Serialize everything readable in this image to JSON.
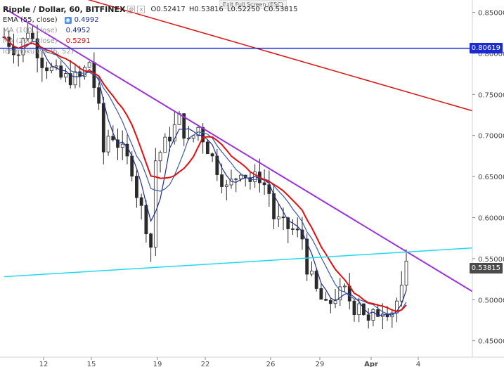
{
  "header": {
    "symbol": "Ripple / Dollar, 60, BITFINEX",
    "ohlc": {
      "o": "O0.52417",
      "h": "H0.53816",
      "l": "L0.52250",
      "c": "C0.53815"
    },
    "exit_fullscreen": "Exit Full Screen (ESC)"
  },
  "indicators": [
    {
      "label": "EMA (55, close)",
      "value": "0.4992",
      "color": "#1f2f8f"
    },
    {
      "label": "MA (100, close)",
      "value": "0.4952",
      "color": "#1f2f8f"
    },
    {
      "label": "MA (200, close)",
      "value": "0.5291",
      "color": "#e01010"
    },
    {
      "label": "Ichimoku (9, 26, 52)",
      "value": "",
      "color": "#999999"
    }
  ],
  "price_tags": {
    "line_level": "0.80619",
    "last_price": "0.53815"
  },
  "colors": {
    "up": "#2a2a2a",
    "down": "#2a2a2a",
    "ema55": "#1f2f8f",
    "ma100": "#3a5aa8",
    "ma200": "#e01010",
    "purple_trend": "#9b30e0",
    "red_trend": "#e01010",
    "cyan_trend": "#22d8f0",
    "horizontal": "#1a2bd4",
    "last_tag": "#4a4a4a",
    "level_tag": "#1a2bd4"
  },
  "chart_data": {
    "type": "candlestick",
    "x_ticks": [
      "12",
      "15",
      "19",
      "22",
      "26",
      "29",
      "Apr",
      "4"
    ],
    "y_ticks": [
      "0.85000",
      "0.80000",
      "0.75000",
      "0.70000",
      "0.65000",
      "0.60000",
      "0.55000",
      "0.50000",
      "0.45000"
    ],
    "ylim": [
      0.43,
      0.865
    ],
    "x_span_days": [
      "Mar 9",
      "Apr 5"
    ],
    "anchors": [
      [
        0,
        0.82
      ],
      [
        3,
        0.8
      ],
      [
        5,
        0.83
      ],
      [
        8,
        0.79
      ],
      [
        12,
        0.77
      ],
      [
        16,
        0.77
      ],
      [
        18,
        0.79
      ],
      [
        20,
        0.73
      ],
      [
        21,
        0.68
      ],
      [
        22,
        0.7
      ],
      [
        23,
        0.7
      ],
      [
        25,
        0.68
      ],
      [
        27,
        0.66
      ],
      [
        28,
        0.63
      ],
      [
        30,
        0.59
      ],
      [
        31,
        0.565
      ],
      [
        32,
        0.67
      ],
      [
        34,
        0.69
      ],
      [
        37,
        0.72
      ],
      [
        39,
        0.69
      ],
      [
        41,
        0.71
      ],
      [
        43,
        0.685
      ],
      [
        45,
        0.66
      ],
      [
        47,
        0.635
      ],
      [
        49,
        0.65
      ],
      [
        50,
        0.66
      ],
      [
        52,
        0.645
      ],
      [
        54,
        0.65
      ],
      [
        56,
        0.63
      ],
      [
        57,
        0.6
      ],
      [
        59,
        0.59
      ],
      [
        61,
        0.585
      ],
      [
        63,
        0.575
      ],
      [
        64,
        0.54
      ],
      [
        66,
        0.51
      ],
      [
        68,
        0.49
      ],
      [
        70,
        0.505
      ],
      [
        72,
        0.51
      ],
      [
        74,
        0.49
      ],
      [
        75,
        0.5
      ],
      [
        77,
        0.47
      ],
      [
        78,
        0.48
      ],
      [
        80,
        0.49
      ],
      [
        82,
        0.487
      ],
      [
        84,
        0.51
      ],
      [
        85,
        0.538
      ]
    ],
    "candle_count": 86,
    "lines": {
      "purple_trend": {
        "from": [
          0,
          0.855
        ],
        "to": [
          100,
          0.51
        ]
      },
      "red_trend": {
        "from": [
          12,
          0.875
        ],
        "to": [
          100,
          0.73
        ]
      },
      "cyan_trend": {
        "from": [
          0,
          0.528
        ],
        "to": [
          100,
          0.563
        ]
      },
      "horizontal": {
        "y": 0.80619
      }
    }
  }
}
